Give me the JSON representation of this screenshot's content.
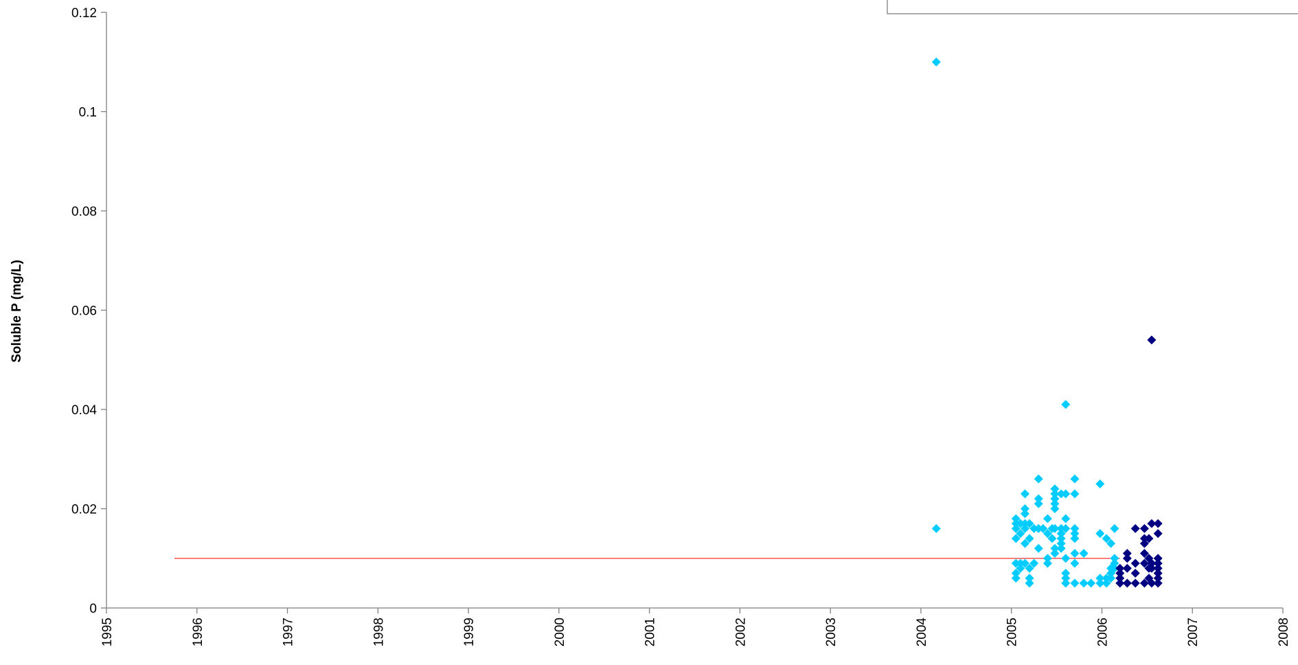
{
  "chart_data": {
    "type": "scatter",
    "title": "",
    "xlabel": "",
    "ylabel": "Soluble P (mg/L)",
    "xlim": [
      1995,
      2008
    ],
    "ylim": [
      0,
      0.12
    ],
    "x_ticks": [
      "1995",
      "1996",
      "1997",
      "1998",
      "1999",
      "2000",
      "2001",
      "2002",
      "2003",
      "2004",
      "2005",
      "2006",
      "2007",
      "2008"
    ],
    "y_ticks": [
      "0",
      "0.02",
      "0.04",
      "0.06",
      "0.08",
      "0.1",
      "0.12"
    ],
    "grid": false,
    "reference_line": {
      "y": 0.01,
      "x_range": [
        1995.75,
        2006.2
      ],
      "color": "#ff3333"
    },
    "series": [
      {
        "color": "#00ccff",
        "points": [
          [
            2004.17,
            0.11
          ],
          [
            2004.17,
            0.016
          ],
          [
            2005.05,
            0.018
          ],
          [
            2005.05,
            0.017
          ],
          [
            2005.05,
            0.016
          ],
          [
            2005.05,
            0.014
          ],
          [
            2005.05,
            0.009
          ],
          [
            2005.05,
            0.007
          ],
          [
            2005.05,
            0.006
          ],
          [
            2005.1,
            0.017
          ],
          [
            2005.1,
            0.015
          ],
          [
            2005.1,
            0.009
          ],
          [
            2005.1,
            0.008
          ],
          [
            2005.15,
            0.023
          ],
          [
            2005.15,
            0.02
          ],
          [
            2005.15,
            0.019
          ],
          [
            2005.15,
            0.017
          ],
          [
            2005.15,
            0.016
          ],
          [
            2005.15,
            0.013
          ],
          [
            2005.15,
            0.009
          ],
          [
            2005.2,
            0.017
          ],
          [
            2005.2,
            0.014
          ],
          [
            2005.2,
            0.008
          ],
          [
            2005.2,
            0.006
          ],
          [
            2005.2,
            0.005
          ],
          [
            2005.25,
            0.016
          ],
          [
            2005.25,
            0.009
          ],
          [
            2005.3,
            0.026
          ],
          [
            2005.3,
            0.022
          ],
          [
            2005.3,
            0.021
          ],
          [
            2005.3,
            0.016
          ],
          [
            2005.3,
            0.012
          ],
          [
            2005.35,
            0.016
          ],
          [
            2005.4,
            0.018
          ],
          [
            2005.4,
            0.015
          ],
          [
            2005.4,
            0.01
          ],
          [
            2005.4,
            0.009
          ],
          [
            2005.45,
            0.016
          ],
          [
            2005.45,
            0.014
          ],
          [
            2005.48,
            0.024
          ],
          [
            2005.48,
            0.023
          ],
          [
            2005.48,
            0.022
          ],
          [
            2005.48,
            0.021
          ],
          [
            2005.48,
            0.02
          ],
          [
            2005.48,
            0.016
          ],
          [
            2005.48,
            0.012
          ],
          [
            2005.48,
            0.011
          ],
          [
            2005.55,
            0.023
          ],
          [
            2005.55,
            0.016
          ],
          [
            2005.55,
            0.015
          ],
          [
            2005.55,
            0.014
          ],
          [
            2005.55,
            0.013
          ],
          [
            2005.55,
            0.012
          ],
          [
            2005.6,
            0.041
          ],
          [
            2005.6,
            0.023
          ],
          [
            2005.6,
            0.018
          ],
          [
            2005.6,
            0.016
          ],
          [
            2005.6,
            0.01
          ],
          [
            2005.6,
            0.007
          ],
          [
            2005.6,
            0.006
          ],
          [
            2005.6,
            0.005
          ],
          [
            2005.7,
            0.026
          ],
          [
            2005.7,
            0.023
          ],
          [
            2005.7,
            0.016
          ],
          [
            2005.7,
            0.015
          ],
          [
            2005.7,
            0.014
          ],
          [
            2005.7,
            0.011
          ],
          [
            2005.7,
            0.009
          ],
          [
            2005.7,
            0.005
          ],
          [
            2005.8,
            0.011
          ],
          [
            2005.8,
            0.005
          ],
          [
            2005.88,
            0.005
          ],
          [
            2005.98,
            0.025
          ],
          [
            2005.98,
            0.015
          ],
          [
            2005.98,
            0.006
          ],
          [
            2005.98,
            0.005
          ],
          [
            2006.05,
            0.014
          ],
          [
            2006.05,
            0.006
          ],
          [
            2006.05,
            0.005
          ],
          [
            2006.1,
            0.013
          ],
          [
            2006.1,
            0.008
          ],
          [
            2006.1,
            0.007
          ],
          [
            2006.1,
            0.006
          ],
          [
            2006.14,
            0.016
          ],
          [
            2006.14,
            0.01
          ],
          [
            2006.14,
            0.009
          ],
          [
            2006.14,
            0.008
          ]
        ]
      },
      {
        "color": "#000080",
        "points": [
          [
            2006.55,
            0.054
          ],
          [
            2006.2,
            0.008
          ],
          [
            2006.2,
            0.007
          ],
          [
            2006.2,
            0.006
          ],
          [
            2006.2,
            0.005
          ],
          [
            2006.28,
            0.011
          ],
          [
            2006.28,
            0.01
          ],
          [
            2006.28,
            0.008
          ],
          [
            2006.28,
            0.005
          ],
          [
            2006.37,
            0.016
          ],
          [
            2006.37,
            0.009
          ],
          [
            2006.37,
            0.007
          ],
          [
            2006.37,
            0.005
          ],
          [
            2006.47,
            0.016
          ],
          [
            2006.47,
            0.014
          ],
          [
            2006.47,
            0.013
          ],
          [
            2006.47,
            0.011
          ],
          [
            2006.47,
            0.009
          ],
          [
            2006.47,
            0.005
          ],
          [
            2006.52,
            0.014
          ],
          [
            2006.52,
            0.01
          ],
          [
            2006.52,
            0.008
          ],
          [
            2006.52,
            0.006
          ],
          [
            2006.55,
            0.017
          ],
          [
            2006.55,
            0.009
          ],
          [
            2006.55,
            0.008
          ],
          [
            2006.55,
            0.005
          ],
          [
            2006.62,
            0.017
          ],
          [
            2006.62,
            0.015
          ],
          [
            2006.62,
            0.01
          ],
          [
            2006.62,
            0.009
          ],
          [
            2006.62,
            0.008
          ],
          [
            2006.62,
            0.007
          ],
          [
            2006.62,
            0.006
          ],
          [
            2006.62,
            0.005
          ]
        ]
      }
    ],
    "legend": {
      "placement": "top-right",
      "entries": []
    }
  }
}
